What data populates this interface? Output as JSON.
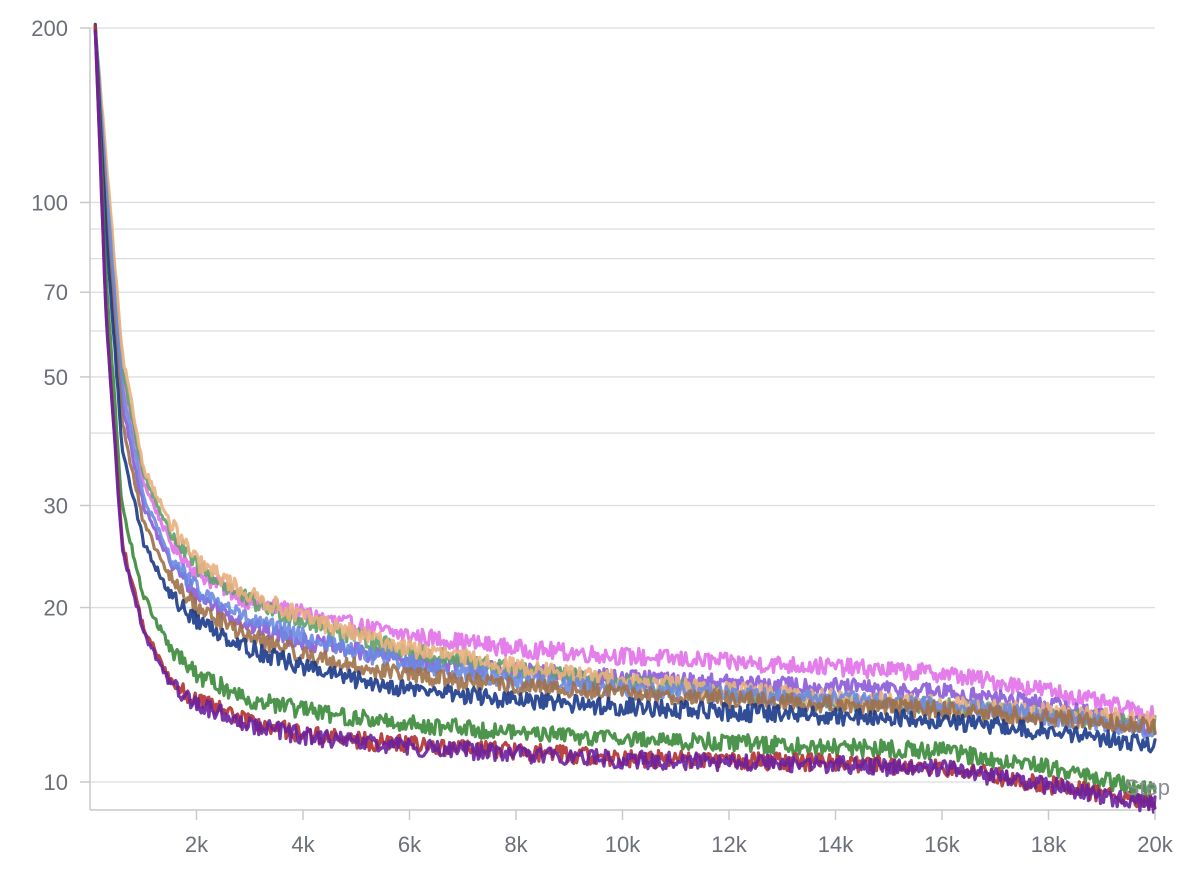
{
  "chart_data": {
    "type": "line",
    "xlabel": "Step",
    "ylabel": "",
    "y_scale": "log",
    "xlim": [
      0,
      20000
    ],
    "ylim": [
      9.2,
      200
    ],
    "grid": true,
    "x_ticks": [
      {
        "value": 2000,
        "label": "2k"
      },
      {
        "value": 4000,
        "label": "4k"
      },
      {
        "value": 6000,
        "label": "6k"
      },
      {
        "value": 8000,
        "label": "8k"
      },
      {
        "value": 10000,
        "label": "10k"
      },
      {
        "value": 12000,
        "label": "12k"
      },
      {
        "value": 14000,
        "label": "14k"
      },
      {
        "value": 16000,
        "label": "16k"
      },
      {
        "value": 18000,
        "label": "18k"
      },
      {
        "value": 20000,
        "label": "20k"
      }
    ],
    "y_ticks": [
      {
        "value": 200,
        "label": "200"
      },
      {
        "value": 100,
        "label": "100"
      },
      {
        "value": 70,
        "label": "70"
      },
      {
        "value": 50,
        "label": "50"
      },
      {
        "value": 30,
        "label": "30"
      },
      {
        "value": 20,
        "label": "20"
      },
      {
        "value": 10,
        "label": "10"
      }
    ],
    "y_minor_gridlines": [
      90,
      80,
      60,
      40
    ],
    "x": [
      100,
      300,
      600,
      1000,
      1500,
      2000,
      3000,
      4000,
      5000,
      6000,
      8000,
      10000,
      12000,
      14000,
      16000,
      18000,
      20000
    ],
    "series": [
      {
        "color": "#e070e8",
        "values": [
          200,
          110,
          50,
          33,
          26,
          23,
          20.5,
          19.5,
          18.6,
          17.9,
          17.0,
          16.5,
          16.1,
          15.8,
          15.4,
          14.4,
          13.0
        ]
      },
      {
        "color": "#8a5ad8",
        "values": [
          200,
          105,
          45,
          30,
          24,
          21,
          18.6,
          17.5,
          16.8,
          16.2,
          15.5,
          15.1,
          14.8,
          14.6,
          14.3,
          13.6,
          12.4
        ]
      },
      {
        "color": "#5fa06a",
        "values": [
          200,
          115,
          52,
          34,
          27,
          23.5,
          20.5,
          19.0,
          17.8,
          16.8,
          15.6,
          14.8,
          14.2,
          13.8,
          13.5,
          13.0,
          12.6
        ]
      },
      {
        "color": "#e8b080",
        "values": [
          200,
          120,
          55,
          35,
          28,
          24,
          21.0,
          19.3,
          18.0,
          17.0,
          15.8,
          15.0,
          14.4,
          14.0,
          13.6,
          13.2,
          12.8
        ]
      },
      {
        "color": "#6a8ae0",
        "values": [
          200,
          108,
          48,
          31,
          24.5,
          21.5,
          19.0,
          17.8,
          16.8,
          16.0,
          15.0,
          14.5,
          14.2,
          13.9,
          13.5,
          13.0,
          12.3
        ]
      },
      {
        "color": "#a07048",
        "values": [
          200,
          95,
          42,
          28,
          22.5,
          20,
          17.8,
          16.6,
          15.8,
          15.3,
          14.6,
          14.2,
          13.9,
          13.6,
          13.3,
          12.9,
          12.5
        ]
      },
      {
        "color": "#1a3a8a",
        "values": [
          200,
          90,
          38,
          26,
          21,
          19,
          17.0,
          15.8,
          15.0,
          14.5,
          13.8,
          13.5,
          13.2,
          13.0,
          12.8,
          12.2,
          11.6
        ]
      },
      {
        "color": "#3a8a3a",
        "values": [
          200,
          75,
          30,
          21,
          17.0,
          15.3,
          13.9,
          13.3,
          12.9,
          12.6,
          12.2,
          11.9,
          11.7,
          11.5,
          11.3,
          10.6,
          9.6
        ]
      },
      {
        "color": "#b03030",
        "values": [
          200,
          65,
          26,
          18.5,
          15.0,
          13.8,
          12.7,
          12.1,
          11.8,
          11.6,
          11.3,
          11.0,
          10.9,
          10.8,
          10.6,
          9.9,
          9.2
        ]
      },
      {
        "color": "#6a20a0",
        "values": [
          200,
          64,
          25.5,
          18.2,
          14.8,
          13.6,
          12.6,
          12.0,
          11.7,
          11.5,
          11.2,
          10.95,
          10.8,
          10.7,
          10.55,
          9.85,
          9.15
        ]
      }
    ]
  }
}
